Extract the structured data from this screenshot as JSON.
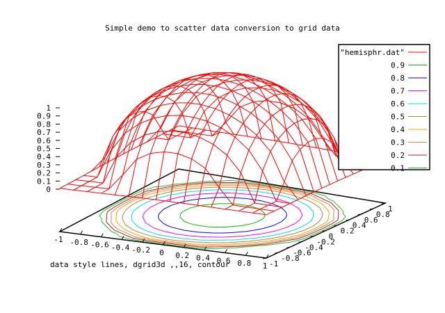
{
  "chart_data": {
    "type": "surface3d",
    "title": "Simple demo to scatter data conversion to grid data",
    "xlabel": "",
    "ylabel": "",
    "zlabel": "",
    "annotation": "data style lines, dgrid3d ,,16, contour",
    "xlim": [
      -1,
      1
    ],
    "ylim": [
      -1,
      1
    ],
    "zlim": [
      0,
      1
    ],
    "x_ticks": [
      "-1",
      "-0.8",
      "-0.6",
      "-0.4",
      "-0.2",
      "0",
      "0.2",
      "0.4",
      "0.6",
      "0.8",
      "1"
    ],
    "y_ticks": [
      "-1",
      "-0.8",
      "-0.6",
      "-0.4",
      "-0.2",
      "0",
      "0.2",
      "0.4",
      "0.6",
      "0.8",
      "1"
    ],
    "z_ticks": [
      "0",
      "0.1",
      "0.2",
      "0.3",
      "0.4",
      "0.5",
      "0.6",
      "0.7",
      "0.8",
      "0.9",
      "1"
    ],
    "grid_size": 16,
    "surface": {
      "name": "\"hemisphr.dat\"",
      "color": "#ff0000",
      "function": "z = sqrt(1 - x^2 - y^2), gridded 16x16 from scattered data"
    },
    "contour_levels": [
      {
        "name": "0.9",
        "level": 0.9,
        "color": "#00c000"
      },
      {
        "name": "0.8",
        "level": 0.8,
        "color": "#0000ff"
      },
      {
        "name": "0.7",
        "level": 0.7,
        "color": "#ff00ff"
      },
      {
        "name": "0.6",
        "level": 0.6,
        "color": "#00e0e0"
      },
      {
        "name": "0.5",
        "level": 0.5,
        "color": "#c08040"
      },
      {
        "name": "0.4",
        "level": 0.4,
        "color": "#ffa000"
      },
      {
        "name": "0.3",
        "level": 0.3,
        "color": "#e08060"
      },
      {
        "name": "0.2",
        "level": 0.2,
        "color": "#c02020"
      },
      {
        "name": "0.1",
        "level": 0.1,
        "color": "#20c020"
      }
    ],
    "legend_position": "top-right"
  }
}
